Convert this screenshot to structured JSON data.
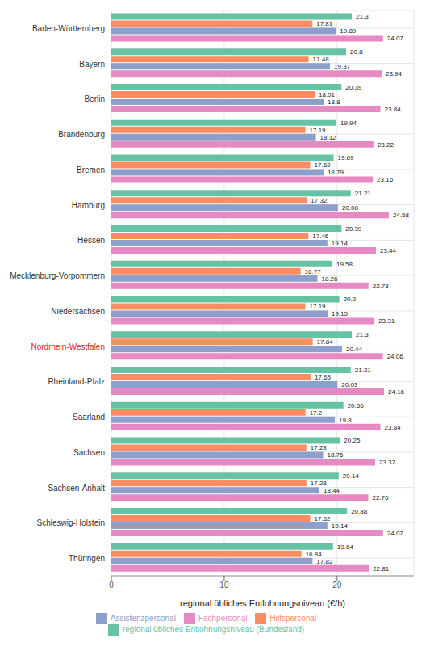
{
  "chart_data": {
    "type": "bar",
    "orientation": "horizontal",
    "x_label": "regional übliches Entlohnungsniveau (€/h)",
    "categories": [
      "Baden-Württemberg",
      "Bayern",
      "Berlin",
      "Brandenburg",
      "Bremen",
      "Hamburg",
      "Hessen",
      "Mecklenburg-Vorpommern",
      "Niedersachsen",
      "Nordrhein-Westfalen",
      "Rheinland-Pfalz",
      "Saarland",
      "Sachsen",
      "Sachsen-Anhalt",
      "Schleswig-Holstein",
      "Thüringen"
    ],
    "series": [
      {
        "name": "regional übliches Entlohnungsniveau (Bundesland)",
        "color": "#66c2a5",
        "values": [
          21.3,
          20.8,
          20.39,
          19.94,
          19.69,
          21.21,
          20.39,
          19.58,
          20.2,
          21.3,
          21.21,
          20.56,
          20.25,
          20.14,
          20.88,
          19.64
        ]
      },
      {
        "name": "Hilfspersonal",
        "color": "#fc8d62",
        "values": [
          17.81,
          17.48,
          18.01,
          17.19,
          17.62,
          17.32,
          17.46,
          16.77,
          17.19,
          17.84,
          17.65,
          17.2,
          17.28,
          17.28,
          17.62,
          16.84
        ]
      },
      {
        "name": "Assistenzpersonal",
        "color": "#8da0cb",
        "values": [
          19.89,
          19.37,
          18.8,
          18.12,
          18.79,
          20.08,
          19.14,
          18.26,
          19.15,
          20.44,
          20.03,
          19.8,
          18.76,
          18.44,
          19.14,
          17.82
        ]
      },
      {
        "name": "Fachpersonal",
        "color": "#e78ac3",
        "values": [
          24.07,
          23.94,
          23.84,
          23.22,
          23.16,
          24.58,
          23.44,
          22.78,
          23.31,
          24.06,
          24.16,
          23.84,
          23.37,
          22.76,
          24.07,
          22.81
        ]
      }
    ],
    "xlim": [
      0,
      26.8
    ],
    "xticks": [
      0,
      10,
      20
    ],
    "grid": true,
    "data_labels": true,
    "legend": "bottom"
  }
}
